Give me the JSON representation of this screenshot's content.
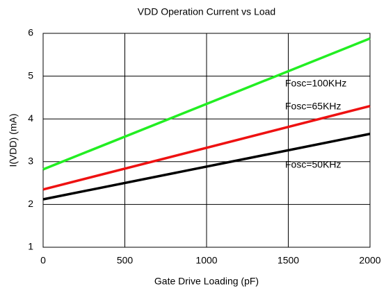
{
  "chart_data": {
    "type": "line",
    "title": "VDD Operation Current vs Load",
    "x_label": "Gate Drive Loading (pF)",
    "y_label": "I(VDD) (mA)",
    "x": [
      0,
      2000
    ],
    "series": [
      {
        "name": "Fosc=100KHz",
        "color": "#22ee22",
        "values": [
          2.82,
          5.88
        ]
      },
      {
        "name": "Fosc=65KHz",
        "color": "#ee1111",
        "values": [
          2.35,
          4.3
        ]
      },
      {
        "name": "Fosc=50KHz",
        "color": "#000000",
        "values": [
          2.12,
          3.65
        ]
      }
    ],
    "xlim": [
      0,
      2000
    ],
    "xticks": [
      0,
      500,
      1000,
      1500,
      2000
    ],
    "ylim": [
      1,
      6
    ],
    "yticks": [
      1,
      2,
      3,
      4,
      5,
      6
    ],
    "grid": true
  }
}
